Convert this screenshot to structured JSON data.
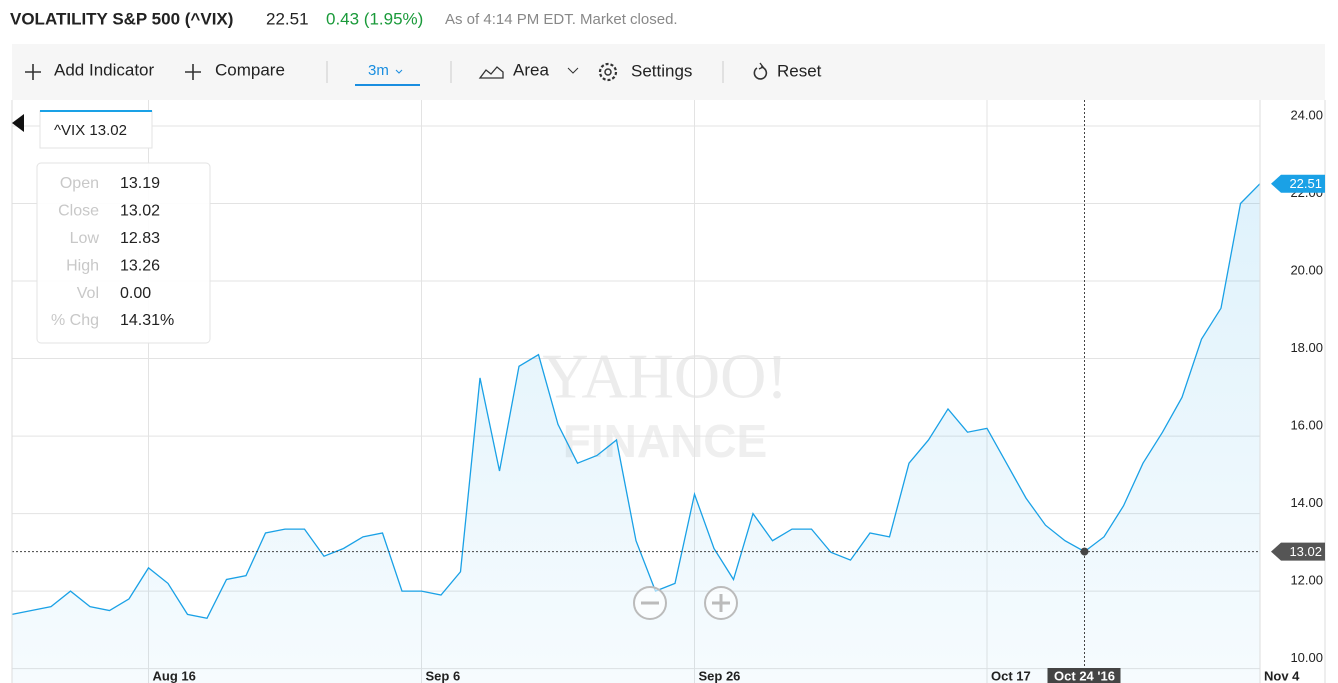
{
  "header": {
    "title": "VOLATILITY S&P 500 (^VIX)",
    "change": "0.43 (1.95%)",
    "status": "As of 4:14 PM EDT. Market closed."
  },
  "toolbar": {
    "add_indicator": "Add Indicator",
    "compare": "Compare",
    "range": "3m",
    "chart_type": "Area",
    "settings": "Settings",
    "reset": "Reset"
  },
  "watermark": [
    "YAHOO!",
    "FINANCE"
  ],
  "chart_data": {
    "type": "area",
    "symbol": "^VIX",
    "categories": [
      null,
      null,
      null,
      null,
      null,
      null,
      null,
      "Aug 16",
      null,
      null,
      null,
      null,
      null,
      null,
      null,
      null,
      null,
      null,
      null,
      null,
      null,
      "Sep 6",
      null,
      null,
      null,
      null,
      null,
      null,
      null,
      null,
      null,
      null,
      null,
      null,
      null,
      "Sep 26",
      null,
      null,
      null,
      null,
      null,
      null,
      null,
      null,
      null,
      null,
      null,
      null,
      null,
      null,
      "Oct 17",
      null,
      null,
      null,
      null,
      "Oct 24 '16",
      null,
      null,
      null,
      null,
      null,
      null,
      null,
      null,
      "Nov 4"
    ],
    "series": [
      {
        "name": "^VIX",
        "color": "#1aa1e6",
        "values": [
          11.4,
          11.5,
          11.6,
          12.0,
          11.6,
          11.5,
          11.8,
          12.6,
          12.2,
          11.4,
          11.3,
          12.3,
          12.4,
          13.5,
          13.6,
          13.6,
          12.9,
          13.1,
          13.4,
          13.5,
          12.0,
          12.0,
          11.9,
          12.5,
          17.5,
          15.1,
          17.8,
          18.1,
          16.3,
          15.3,
          15.5,
          15.9,
          13.3,
          12.0,
          12.2,
          14.5,
          13.1,
          12.3,
          14.0,
          13.3,
          13.6,
          13.6,
          13.0,
          12.8,
          13.5,
          13.4,
          15.3,
          15.9,
          16.7,
          16.1,
          16.2,
          15.3,
          14.4,
          13.7,
          13.3,
          13.02,
          13.4,
          14.2,
          15.3,
          16.1,
          17.0,
          18.5,
          19.3,
          22.0,
          22.51
        ]
      }
    ],
    "crosshair_index": 55,
    "ylim": [
      9.63,
      24.67
    ],
    "yticks": [
      {
        "value": 10,
        "label": "10.00"
      },
      {
        "value": 12,
        "label": "12.00"
      },
      {
        "value": 14,
        "label": "14.00"
      },
      {
        "value": 16,
        "label": "16.00"
      },
      {
        "value": 18,
        "label": "18.00"
      },
      {
        "value": 20,
        "label": "20.00"
      },
      {
        "value": 22,
        "label": "22.00"
      },
      {
        "value": 24,
        "label": "24.00"
      }
    ],
    "grid": true,
    "tooltip": [
      {
        "label": "Open",
        "value": "13.19"
      },
      {
        "label": "Close",
        "value": "13.02"
      },
      {
        "label": "Low",
        "value": "12.83"
      },
      {
        "label": "High",
        "value": "13.26"
      },
      {
        "label": "Vol",
        "value": "0.00"
      },
      {
        "label": "% Chg",
        "value": "14.31%"
      }
    ]
  }
}
